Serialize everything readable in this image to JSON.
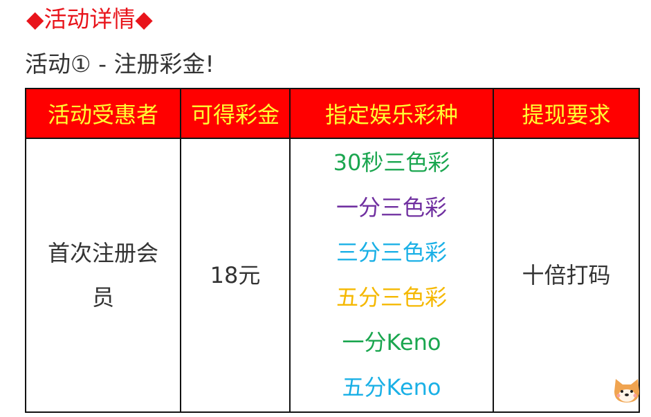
{
  "title": "◆活动详情◆",
  "subtitle": "活动① - 注册彩金!",
  "table": {
    "headers": [
      "活动受惠者",
      "可得彩金",
      "指定娱乐彩种",
      "提现要求"
    ],
    "row": {
      "beneficiary": "首次注册会员",
      "bonus": "18元",
      "games": [
        {
          "name": "30秒三色彩",
          "color": "#1aa64f"
        },
        {
          "name": "一分三色彩",
          "color": "#7030a0"
        },
        {
          "name": "三分三色彩",
          "color": "#1ab0e6"
        },
        {
          "name": "五分三色彩",
          "color": "#f5b800"
        },
        {
          "name": "一分Keno",
          "color": "#1aa64f"
        },
        {
          "name": "五分Keno",
          "color": "#1ab0e6"
        }
      ],
      "requirement": "十倍打码"
    }
  },
  "colors": {
    "header_bg": "#ff0000",
    "header_text": "#ffff33",
    "title": "#e8141b"
  },
  "mascot_icon": "shiba-dog-icon"
}
